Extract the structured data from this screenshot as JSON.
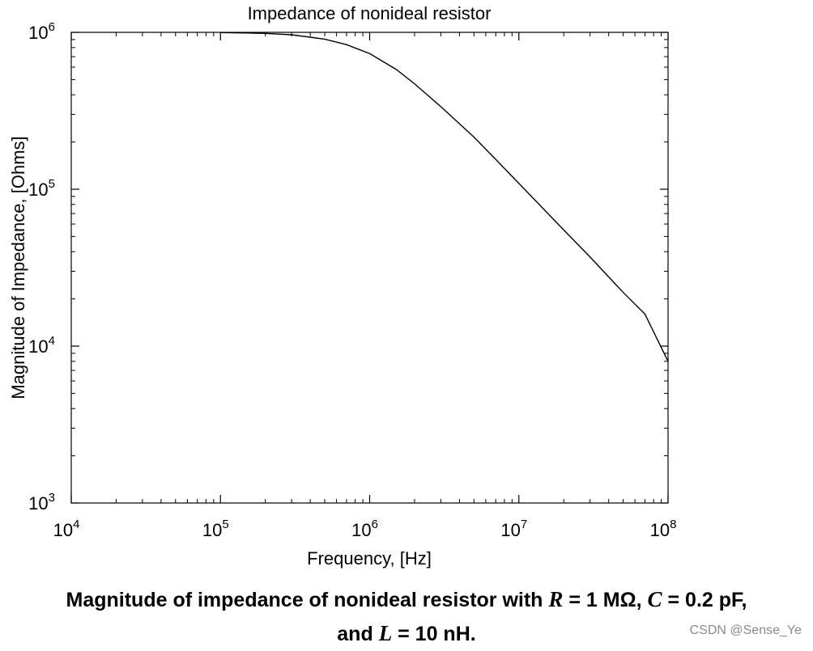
{
  "chart_data": {
    "type": "line",
    "title": "Impedance of nonideal resistor",
    "xlabel": "Frequency, [Hz]",
    "ylabel": "Magnitude of Impedance, [Ohms]",
    "xscale": "log",
    "yscale": "log",
    "xlim": [
      10000,
      100000000
    ],
    "ylim": [
      1000,
      1000000
    ],
    "x_ticks": [
      {
        "value": 10000,
        "base": "10",
        "exp": "4"
      },
      {
        "value": 100000,
        "base": "10",
        "exp": "5"
      },
      {
        "value": 1000000,
        "base": "10",
        "exp": "6"
      },
      {
        "value": 10000000,
        "base": "10",
        "exp": "7"
      },
      {
        "value": 100000000,
        "base": "10",
        "exp": "8"
      }
    ],
    "y_ticks": [
      {
        "value": 1000,
        "base": "10",
        "exp": "3"
      },
      {
        "value": 10000,
        "base": "10",
        "exp": "4"
      },
      {
        "value": 100000,
        "base": "10",
        "exp": "5"
      },
      {
        "value": 1000000,
        "base": "10",
        "exp": "6"
      }
    ],
    "grid": false,
    "series": [
      {
        "x": [
          100000,
          150000,
          200000,
          300000,
          500000,
          700000,
          1000000,
          1500000,
          2000000,
          3000000,
          5000000,
          7000000,
          10000000,
          20000000,
          30000000,
          50000000,
          70000000,
          100000000
        ],
        "y": [
          996000,
          991000,
          984000,
          965000,
          905000,
          835000,
          732000,
          582000,
          470000,
          336000,
          215000,
          155000,
          109000,
          55000,
          37000,
          22000,
          16000,
          8000
        ]
      }
    ]
  },
  "caption": {
    "line1_prefix": "Magnitude of impedance of nonideal resistor with ",
    "r_symbol": "R",
    "r_value": " = 1 MΩ, ",
    "c_symbol": "C",
    "c_value": " = 0.2 pF,",
    "line2_prefix": "and ",
    "l_symbol": "L",
    "l_value": " = 10 nH."
  },
  "watermark": "CSDN @Sense_Ye"
}
